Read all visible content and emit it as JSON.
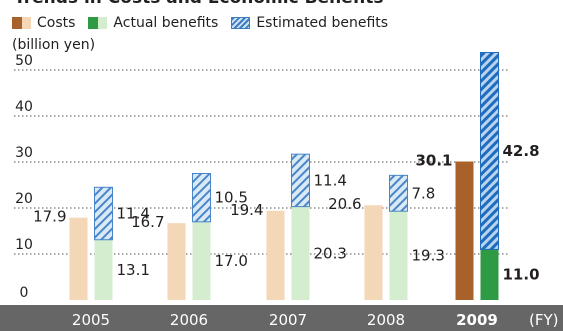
{
  "chart_data": {
    "type": "bar",
    "title": "Trends in Costs and Economic Benefits",
    "ylabel": "(billion yen)",
    "xlabel": "(FY)",
    "ylim": [
      0,
      50
    ],
    "yticks": [
      "0",
      "10",
      "20",
      "30",
      "40",
      "50"
    ],
    "categories": [
      "2005",
      "2006",
      "2007",
      "2008",
      "2009"
    ],
    "highlight_category": "2009",
    "grid": "dotted-horizontal",
    "legend_position": "top-left",
    "series": [
      {
        "name": "Costs",
        "values": [
          17.9,
          16.7,
          19.4,
          20.6,
          30.1
        ],
        "labels": [
          "17.9",
          "16.7",
          "19.4",
          "20.6",
          "30.1"
        ],
        "color": "#f3d7b7",
        "highlight_color": "#a8612b"
      },
      {
        "name": "Actual benefits",
        "values": [
          13.1,
          17.0,
          20.3,
          19.3,
          11.0
        ],
        "labels": [
          "13.1",
          "17.0",
          "20.3",
          "19.3",
          "11.0"
        ],
        "color": "#d4edcf",
        "highlight_color": "#2f9a44"
      },
      {
        "name": "Estimated benefits",
        "values": [
          11.4,
          10.5,
          11.4,
          7.8,
          42.8
        ],
        "labels": [
          "11.4",
          "10.5",
          "11.4",
          "7.8",
          "42.8"
        ],
        "color": "#cfe3f4",
        "highlight_color": "#3d7dc2",
        "stacked_on": "Actual benefits"
      }
    ]
  }
}
